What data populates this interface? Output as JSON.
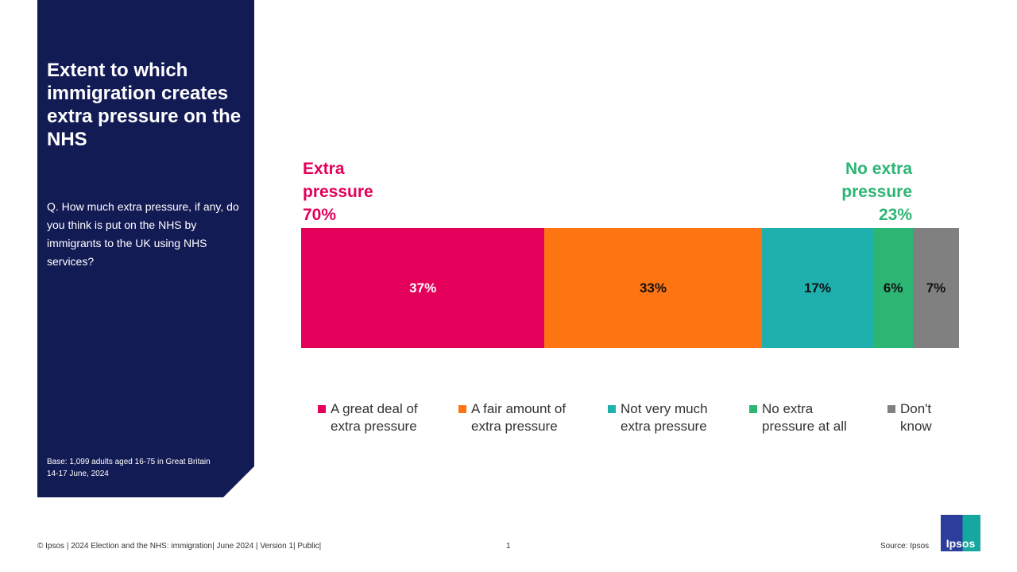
{
  "title": "Extent to which immigration creates extra pressure on the NHS",
  "question": "Q. How much extra pressure, if any, do you think is put on the NHS by immigrants to the UK using NHS services?",
  "base_line1": "Base: 1,099 adults aged 16-75 in Great Britain",
  "base_line2": "14-17 June, 2024",
  "footer": "© Ipsos | 2024 Election and the NHS: immigration| June 2024 | Version 1| Public|",
  "page_number": "1",
  "source": "Source: Ipsos",
  "logo_text": "Ipsos",
  "chart_data": {
    "type": "bar",
    "stacked": true,
    "orientation": "horizontal",
    "groups": [
      {
        "label_line1": "Extra",
        "label_line2": "pressure",
        "value": "70%",
        "color": "#e4005a"
      },
      {
        "label_line1": "No extra",
        "label_line2": "pressure",
        "value": "23%",
        "color": "#2db574"
      }
    ],
    "series": [
      {
        "name": "A great deal of extra pressure",
        "value": 37,
        "label": "37%",
        "color": "#e4005a",
        "text_color": "#ffffff"
      },
      {
        "name": "A fair amount of extra pressure",
        "value": 33,
        "label": "33%",
        "color": "#fd7412",
        "text_color": "#111111"
      },
      {
        "name": "Not very much extra pressure",
        "value": 17,
        "label": "17%",
        "color": "#1fb0ae",
        "text_color": "#111111"
      },
      {
        "name": "No extra pressure at all",
        "value": 6,
        "label": "6%",
        "color": "#2db574",
        "text_color": "#111111"
      },
      {
        "name": "Don't know",
        "value": 7,
        "label": "7%",
        "color": "#808080",
        "text_color": "#111111"
      }
    ],
    "legend_placement": "bottom"
  }
}
